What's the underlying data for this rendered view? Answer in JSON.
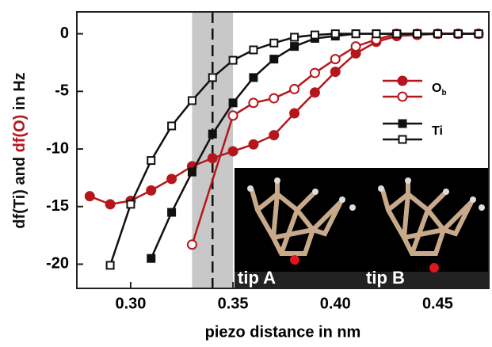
{
  "chart_data": {
    "type": "line",
    "x_label": "piezo distance in nm",
    "y_label_parts": [
      {
        "text": "df(Ti) and ",
        "color": "#111111"
      },
      {
        "text": "df(O)",
        "color": "#b5161c"
      },
      {
        "text": " in Hz",
        "color": "#111111"
      }
    ],
    "xlim": [
      0.2737,
      0.475
    ],
    "ylim": [
      -22.1,
      1.9
    ],
    "xticks": [
      {
        "value": 0.3,
        "label": "0.30"
      },
      {
        "value": 0.35,
        "label": "0.35"
      },
      {
        "value": 0.4,
        "label": "0.40"
      },
      {
        "value": 0.45,
        "label": "0.45"
      }
    ],
    "yticks": [
      0,
      -5,
      -10,
      -15,
      -20
    ],
    "highlight_band": [
      0.33,
      0.35
    ],
    "dashed_line": 0.34,
    "series": [
      {
        "color": "#b5161c",
        "marker": "circle",
        "filled": true,
        "x": [
          0.28,
          0.29,
          0.3,
          0.31,
          0.32,
          0.33,
          0.34,
          0.35,
          0.36,
          0.37,
          0.38,
          0.39,
          0.4,
          0.41,
          0.42,
          0.43,
          0.44,
          0.45,
          0.46,
          0.47
        ],
        "values": [
          -14.1,
          -14.8,
          -14.5,
          -13.6,
          -12.6,
          -11.5,
          -10.8,
          -10.2,
          -9.6,
          -8.8,
          -6.9,
          -5.1,
          -3.3,
          -1.7,
          -0.7,
          -0.2,
          -0.1,
          0,
          0,
          0
        ]
      },
      {
        "color": "#b5161c",
        "marker": "circle",
        "filled": false,
        "x": [
          0.33,
          0.35,
          0.36,
          0.37,
          0.38,
          0.39,
          0.4,
          0.41,
          0.42,
          0.43,
          0.44,
          0.45,
          0.46,
          0.47
        ],
        "values": [
          -18.3,
          -7.1,
          -6.0,
          -5.6,
          -4.8,
          -3.4,
          -2.2,
          -1.1,
          -0.5,
          0,
          0,
          0,
          0,
          0
        ]
      },
      {
        "color": "#111111",
        "marker": "square",
        "filled": true,
        "x": [
          0.31,
          0.32,
          0.33,
          0.34,
          0.35,
          0.36,
          0.37,
          0.38,
          0.39,
          0.4,
          0.41,
          0.42,
          0.43,
          0.44,
          0.45,
          0.46,
          0.47
        ],
        "values": [
          -19.5,
          -15.5,
          -12.0,
          -8.7,
          -6.0,
          -3.8,
          -2.2,
          -1.1,
          -0.4,
          -0.2,
          0,
          0,
          0,
          0,
          0,
          0,
          0
        ]
      },
      {
        "color": "#111111",
        "marker": "square",
        "filled": false,
        "x": [
          0.29,
          0.3,
          0.31,
          0.32,
          0.33,
          0.34,
          0.35,
          0.36,
          0.37,
          0.38,
          0.39,
          0.4,
          0.41,
          0.42,
          0.43,
          0.44,
          0.45,
          0.46,
          0.47
        ],
        "values": [
          -20.1,
          -14.8,
          -11.0,
          -8.0,
          -5.8,
          -3.8,
          -2.3,
          -1.4,
          -0.8,
          -0.3,
          -0.1,
          0,
          0,
          0,
          0,
          0,
          0,
          0,
          0
        ]
      }
    ],
    "legend": [
      {
        "label": "O",
        "subscript": "b"
      },
      {
        "label": "Ti"
      }
    ],
    "inset_labels": [
      "tip A",
      "tip B"
    ]
  }
}
